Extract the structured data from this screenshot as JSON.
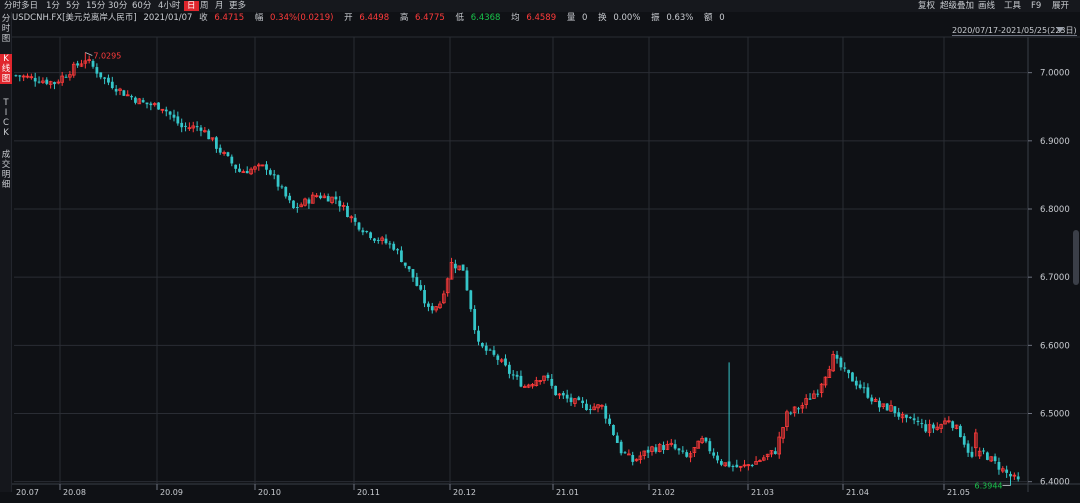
{
  "toolbar": {
    "periods": [
      "分时",
      "多日",
      "1分",
      "5分",
      "15分",
      "30分",
      "60分",
      "4小时",
      "日",
      "周",
      "月",
      "更多"
    ],
    "active_period": "日",
    "right_menu": [
      "复权",
      "超级叠加",
      "画线",
      "工具",
      "F9",
      "展开"
    ]
  },
  "sidebar": {
    "items": [
      {
        "label": "分\n时\n图",
        "active": false
      },
      {
        "label": "K\n线\n图",
        "active": true
      },
      {
        "label": "T\nI\nC\nK",
        "active": false
      },
      {
        "label": "成\n交\n明\n细",
        "active": false
      }
    ]
  },
  "info": {
    "symbol": "USDCNH.FX[美元兑离岸人民币]",
    "date": "2021/01/07",
    "close_label": "收",
    "close": "6.4715",
    "change_label": "幅",
    "change": "0.34%(0.0219)",
    "open_label": "开",
    "open": "6.4498",
    "high_label": "高",
    "high": "6.4775",
    "low_label": "低",
    "low": "6.4368",
    "avg_label": "均",
    "avg": "6.4589",
    "volume_label": "量",
    "volume": "0",
    "turnover_label": "换",
    "turnover": "0.00%",
    "amplitude_label": "振",
    "amplitude": "0.63%",
    "amount_label": "额",
    "amount": "0"
  },
  "range": "2020/07/17-2021/05/25(223日)",
  "colors": {
    "up": "#ff3b3b",
    "down": "#35c6c9",
    "bg": "#0f1115",
    "grid": "#2a2d34",
    "axis_text": "#c9ccd1"
  },
  "chart_data": {
    "type": "candlestick",
    "x_ticks": [
      "20.07",
      "20.08",
      "20.09",
      "20.10",
      "20.11",
      "20.12",
      "21.01",
      "21.02",
      "21.03",
      "21.04",
      "21.05"
    ],
    "y_ticks": [
      7.0,
      6.9,
      6.8,
      6.7,
      6.6,
      6.5,
      6.4
    ],
    "y_tick_labels": [
      "7.0000",
      "6.9000",
      "6.8000",
      "6.7000",
      "6.6000",
      "6.5000",
      "6.4000"
    ],
    "ylim": [
      6.3966,
      7.0523
    ],
    "high_annotation": "7.0295",
    "low_annotation": "6.3944",
    "close_path": [
      [
        0,
        6.996
      ],
      [
        6,
        6.99
      ],
      [
        10,
        6.985
      ],
      [
        18,
        7.02
      ],
      [
        23,
        6.99
      ],
      [
        28,
        6.97
      ],
      [
        33,
        6.955
      ],
      [
        38,
        6.95
      ],
      [
        43,
        6.92
      ],
      [
        48,
        6.92
      ],
      [
        53,
        6.885
      ],
      [
        58,
        6.855
      ],
      [
        63,
        6.86
      ],
      [
        65,
        6.862
      ],
      [
        72,
        6.8
      ],
      [
        78,
        6.82
      ],
      [
        83,
        6.815
      ],
      [
        88,
        6.78
      ],
      [
        93,
        6.758
      ],
      [
        98,
        6.745
      ],
      [
        103,
        6.7
      ],
      [
        107,
        6.652
      ],
      [
        110,
        6.662
      ],
      [
        113,
        6.72
      ],
      [
        116,
        6.712
      ],
      [
        120,
        6.6
      ],
      [
        125,
        6.58
      ],
      [
        128,
        6.56
      ],
      [
        132,
        6.54
      ],
      [
        137,
        6.557
      ],
      [
        140,
        6.53
      ],
      [
        144,
        6.518
      ],
      [
        148,
        6.51
      ],
      [
        152,
        6.51
      ],
      [
        157,
        6.445
      ],
      [
        160,
        6.43
      ],
      [
        165,
        6.449
      ],
      [
        170,
        6.452
      ],
      [
        174,
        6.435
      ],
      [
        178,
        6.46
      ],
      [
        183,
        6.428
      ],
      [
        188,
        6.42
      ],
      [
        193,
        6.432
      ],
      [
        197,
        6.445
      ],
      [
        200,
        6.498
      ],
      [
        204,
        6.512
      ],
      [
        208,
        6.535
      ],
      [
        212,
        6.582
      ],
      [
        215,
        6.56
      ],
      [
        218,
        6.545
      ],
      [
        221,
        6.528
      ],
      [
        224,
        6.51
      ],
      [
        227,
        6.508
      ],
      [
        231,
        6.488
      ],
      [
        233,
        6.49
      ],
      [
        236,
        6.478
      ],
      [
        239,
        6.48
      ],
      [
        242,
        6.492
      ],
      [
        245,
        6.47
      ],
      [
        248,
        6.434
      ],
      [
        251,
        6.442
      ],
      [
        254,
        6.427
      ],
      [
        257,
        6.412
      ],
      [
        260,
        6.4
      ]
    ]
  }
}
